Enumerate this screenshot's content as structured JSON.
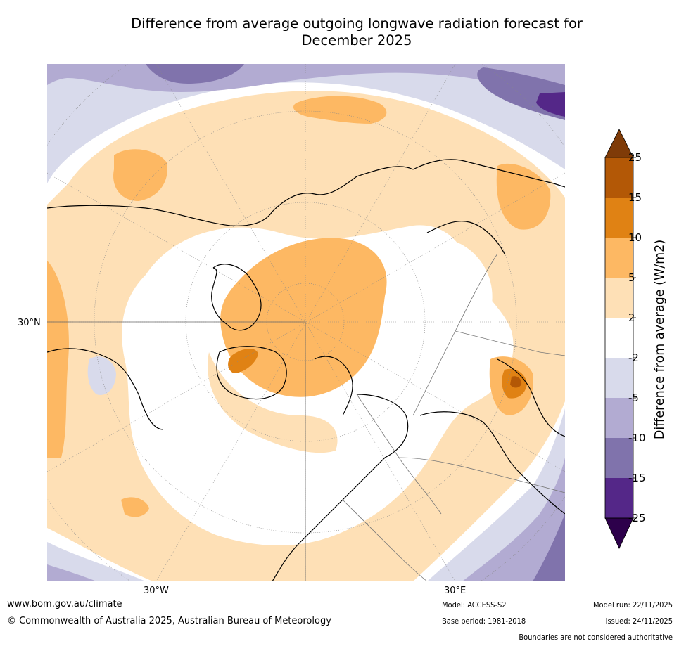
{
  "title_line1": "Difference from average outgoing longwave radiation forecast for",
  "title_line2": "December 2025",
  "map": {
    "projection": "north-polar-stereographic",
    "lat_label": "30°N",
    "lon_labels": [
      "30°W",
      "30°E"
    ]
  },
  "colorbar": {
    "label": "Difference from average (W/m2)",
    "ticks": [
      "25",
      "15",
      "10",
      "5",
      "2",
      "-2",
      "-5",
      "-10",
      "-15",
      "-25"
    ],
    "colors": {
      "gt25": "#7f3b08",
      "15_25": "#b35806",
      "10_15": "#e08214",
      "5_10": "#fdb863",
      "2_5": "#fee0b6",
      "neutral": "#ffffff",
      "m5_m2": "#d8daeb",
      "m10_m5": "#b2abd2",
      "m15_m10": "#8073ac",
      "m25_m15": "#542788",
      "lt_m25": "#2d004b"
    }
  },
  "footer": {
    "url": "www.bom.gov.au/climate",
    "copyright": "© Commonwealth of Australia 2025, Australian Bureau of Meteorology",
    "model": "Model: ACCESS-S2",
    "base_period": "Base period: 1981-2018",
    "model_run": "Model run: 22/11/2025",
    "issued": "Issued: 24/11/2025",
    "disclaimer": "Boundaries are not considered authoritative"
  }
}
